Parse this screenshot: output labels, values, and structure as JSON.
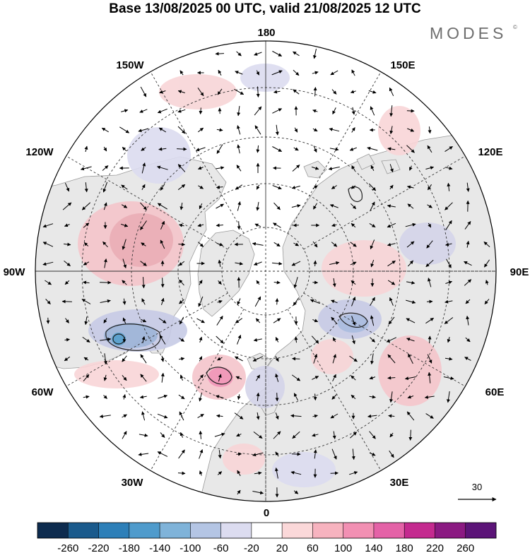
{
  "title": "Base 13/08/2025 00 UTC, valid 21/08/2025 12 UTC",
  "brand": "MODES",
  "brand_mark": "©",
  "map": {
    "projection": "north polar stereographic",
    "meridian_labels": [
      "180",
      "150E",
      "120E",
      "90E",
      "60E",
      "30E",
      "0",
      "30W",
      "60W",
      "90W",
      "120W",
      "150W"
    ],
    "reference_vector": {
      "label": "30"
    }
  },
  "colorbar": {
    "ticks": [
      "-260",
      "-220",
      "-180",
      "-140",
      "-100",
      "-60",
      "-20",
      "20",
      "60",
      "100",
      "140",
      "180",
      "220",
      "260"
    ],
    "colors": [
      "#0d2b4e",
      "#1a5a8c",
      "#2d7fb8",
      "#4f9bcc",
      "#7fb3d9",
      "#b4c5e4",
      "#dcdcf0",
      "#ffffff",
      "#fbd8d9",
      "#f7b3bf",
      "#f290b3",
      "#e462a7",
      "#c42a8f",
      "#8b1a82",
      "#5c1478"
    ]
  },
  "colors": {
    "land": "#e9e9e9",
    "ocean": "#ffffff"
  }
}
